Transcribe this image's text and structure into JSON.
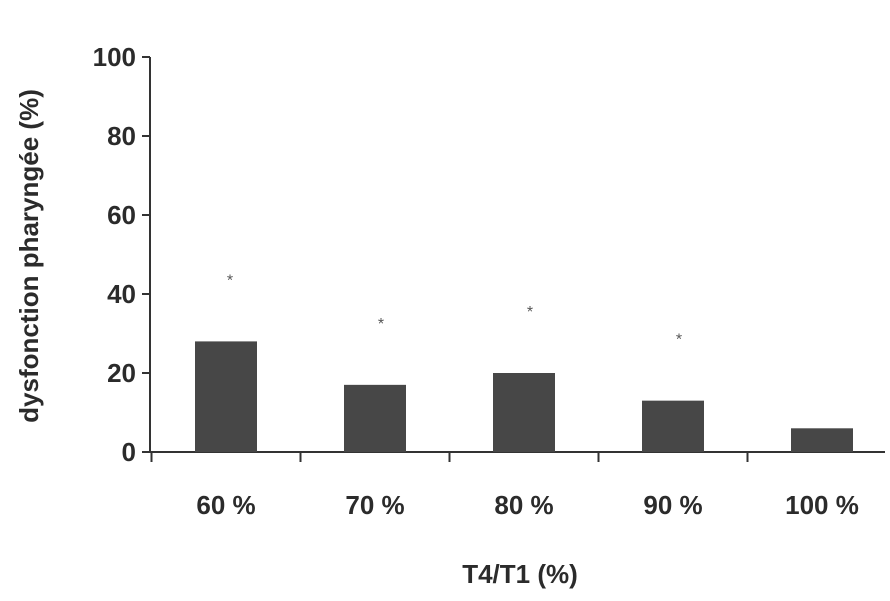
{
  "chart_data": {
    "type": "bar",
    "categories": [
      "60 %",
      "70 %",
      "80 %",
      "90 %",
      "100 %"
    ],
    "values": [
      28,
      17,
      20,
      13,
      6
    ],
    "significance_markers": [
      "*",
      "*",
      "*",
      "*",
      ""
    ],
    "xlabel": "T4/T1 (%)",
    "ylabel": "dysfonction pharyngée (%)",
    "ylim": [
      0,
      100
    ],
    "yticks": [
      0,
      20,
      40,
      60,
      80,
      100
    ],
    "grid": false,
    "bar_color": "#474747",
    "axis_color": "#333333"
  }
}
